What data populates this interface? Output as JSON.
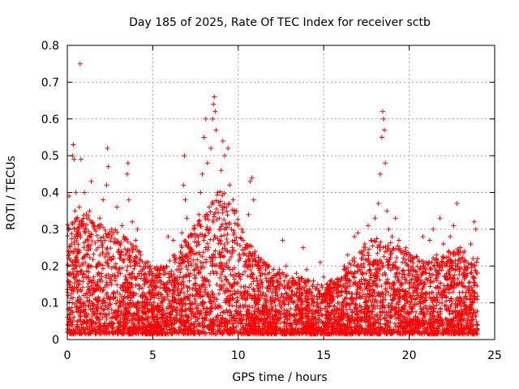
{
  "chart_data": {
    "type": "scatter",
    "title": "Day 185 of 2025, Rate Of TEC Index for receiver sctb",
    "xlabel": "GPS time / hours",
    "ylabel": "ROTI / TECUs",
    "xlim": [
      0,
      25
    ],
    "ylim": [
      0,
      0.8
    ],
    "xticks": [
      0,
      5,
      10,
      15,
      20,
      25
    ],
    "yticks": [
      0,
      0.1,
      0.2,
      0.3,
      0.4,
      0.5,
      0.6,
      0.7,
      0.8
    ],
    "xtick_labels": [
      "0",
      "5",
      "10",
      "15",
      "20",
      "25"
    ],
    "ytick_labels": [
      "0",
      "0.1",
      "0.2",
      "0.3",
      "0.4",
      "0.5",
      "0.6",
      "0.7",
      "0.8"
    ],
    "grid": true,
    "marker": "plus",
    "color": "#ff0000",
    "series": [
      {
        "points": [
          [
            0.0,
            0.02
          ],
          [
            0.05,
            0.12
          ],
          [
            0.1,
            0.3
          ],
          [
            0.1,
            0.39
          ],
          [
            0.15,
            0.18
          ],
          [
            0.2,
            0.05
          ],
          [
            0.25,
            0.26
          ],
          [
            0.3,
            0.1
          ],
          [
            0.3,
            0.5
          ],
          [
            0.35,
            0.53
          ],
          [
            0.4,
            0.49
          ],
          [
            0.45,
            0.35
          ],
          [
            0.5,
            0.4
          ],
          [
            0.55,
            0.08
          ],
          [
            0.6,
            0.28
          ],
          [
            0.65,
            0.15
          ],
          [
            0.7,
            0.36
          ],
          [
            0.75,
            0.75
          ],
          [
            0.8,
            0.49
          ],
          [
            0.85,
            0.31
          ],
          [
            0.9,
            0.22
          ],
          [
            0.95,
            0.12
          ],
          [
            1.0,
            0.4
          ],
          [
            1.05,
            0.29
          ],
          [
            1.1,
            0.06
          ],
          [
            1.2,
            0.2
          ],
          [
            1.3,
            0.35
          ],
          [
            1.4,
            0.43
          ],
          [
            1.5,
            0.14
          ],
          [
            1.6,
            0.3
          ],
          [
            1.7,
            0.09
          ],
          [
            1.8,
            0.25
          ],
          [
            1.9,
            0.33
          ],
          [
            2.0,
            0.18
          ],
          [
            2.1,
            0.38
          ],
          [
            2.2,
            0.27
          ],
          [
            2.3,
            0.42
          ],
          [
            2.35,
            0.52
          ],
          [
            2.4,
            0.47
          ],
          [
            2.5,
            0.11
          ],
          [
            2.6,
            0.3
          ],
          [
            2.7,
            0.22
          ],
          [
            2.8,
            0.16
          ],
          [
            2.9,
            0.36
          ],
          [
            3.0,
            0.24
          ],
          [
            3.1,
            0.09
          ],
          [
            3.2,
            0.31
          ],
          [
            3.3,
            0.28
          ],
          [
            3.4,
            0.13
          ],
          [
            3.5,
            0.45
          ],
          [
            3.55,
            0.48
          ],
          [
            3.6,
            0.38
          ],
          [
            3.7,
            0.2
          ],
          [
            3.8,
            0.32
          ],
          [
            3.9,
            0.12
          ],
          [
            4.0,
            0.27
          ],
          [
            4.1,
            0.3
          ],
          [
            4.2,
            0.06
          ],
          [
            4.3,
            0.23
          ],
          [
            4.4,
            0.19
          ],
          [
            4.5,
            0.15
          ],
          [
            4.6,
            0.21
          ],
          [
            4.7,
            0.1
          ],
          [
            4.8,
            0.13
          ],
          [
            4.9,
            0.08
          ],
          [
            5.0,
            0.18
          ],
          [
            5.1,
            0.05
          ],
          [
            5.2,
            0.12
          ],
          [
            5.3,
            0.09
          ],
          [
            5.4,
            0.16
          ],
          [
            5.5,
            0.07
          ],
          [
            5.6,
            0.14
          ],
          [
            5.7,
            0.11
          ],
          [
            5.8,
            0.2
          ],
          [
            5.9,
            0.28
          ],
          [
            6.0,
            0.09
          ],
          [
            6.1,
            0.15
          ],
          [
            6.2,
            0.27
          ],
          [
            6.3,
            0.06
          ],
          [
            6.4,
            0.19
          ],
          [
            6.5,
            0.12
          ],
          [
            6.6,
            0.22
          ],
          [
            6.7,
            0.29
          ],
          [
            6.8,
            0.42
          ],
          [
            6.85,
            0.5
          ],
          [
            6.9,
            0.38
          ],
          [
            7.0,
            0.33
          ],
          [
            7.1,
            0.26
          ],
          [
            7.2,
            0.18
          ],
          [
            7.3,
            0.24
          ],
          [
            7.4,
            0.3
          ],
          [
            7.5,
            0.14
          ],
          [
            7.6,
            0.2
          ],
          [
            7.7,
            0.34
          ],
          [
            7.8,
            0.4
          ],
          [
            7.9,
            0.45
          ],
          [
            8.0,
            0.55
          ],
          [
            8.1,
            0.6
          ],
          [
            8.2,
            0.48
          ],
          [
            8.3,
            0.36
          ],
          [
            8.4,
            0.52
          ],
          [
            8.5,
            0.6
          ],
          [
            8.55,
            0.64
          ],
          [
            8.6,
            0.66
          ],
          [
            8.65,
            0.62
          ],
          [
            8.7,
            0.57
          ],
          [
            8.8,
            0.4
          ],
          [
            8.9,
            0.33
          ],
          [
            9.0,
            0.46
          ],
          [
            9.1,
            0.54
          ],
          [
            9.2,
            0.5
          ],
          [
            9.3,
            0.36
          ],
          [
            9.4,
            0.52
          ],
          [
            9.5,
            0.42
          ],
          [
            9.6,
            0.3
          ],
          [
            9.7,
            0.38
          ],
          [
            9.8,
            0.27
          ],
          [
            9.9,
            0.35
          ],
          [
            10.0,
            0.31
          ],
          [
            10.1,
            0.22
          ],
          [
            10.2,
            0.3
          ],
          [
            10.3,
            0.12
          ],
          [
            10.4,
            0.25
          ],
          [
            10.5,
            0.2
          ],
          [
            10.6,
            0.34
          ],
          [
            10.7,
            0.43
          ],
          [
            10.8,
            0.44
          ],
          [
            10.9,
            0.38
          ],
          [
            11.0,
            0.24
          ],
          [
            11.1,
            0.16
          ],
          [
            11.2,
            0.21
          ],
          [
            11.3,
            0.13
          ],
          [
            11.4,
            0.18
          ],
          [
            11.5,
            0.09
          ],
          [
            11.6,
            0.19
          ],
          [
            11.7,
            0.14
          ],
          [
            11.8,
            0.2
          ],
          [
            11.9,
            0.11
          ],
          [
            12.0,
            0.16
          ],
          [
            12.2,
            0.12
          ],
          [
            12.4,
            0.19
          ],
          [
            12.6,
            0.27
          ],
          [
            12.8,
            0.2
          ],
          [
            13.0,
            0.14
          ],
          [
            13.2,
            0.1
          ],
          [
            13.4,
            0.18
          ],
          [
            13.6,
            0.12
          ],
          [
            13.8,
            0.25
          ],
          [
            14.0,
            0.19
          ],
          [
            14.2,
            0.13
          ],
          [
            14.4,
            0.16
          ],
          [
            14.6,
            0.08
          ],
          [
            14.8,
            0.21
          ],
          [
            15.0,
            0.17
          ],
          [
            15.2,
            0.1
          ],
          [
            15.4,
            0.14
          ],
          [
            15.6,
            0.09
          ],
          [
            15.8,
            0.15
          ],
          [
            16.0,
            0.12
          ],
          [
            16.2,
            0.2
          ],
          [
            16.4,
            0.23
          ],
          [
            16.6,
            0.18
          ],
          [
            16.8,
            0.28
          ],
          [
            17.0,
            0.29
          ],
          [
            17.2,
            0.22
          ],
          [
            17.4,
            0.26
          ],
          [
            17.6,
            0.31
          ],
          [
            17.8,
            0.27
          ],
          [
            18.0,
            0.33
          ],
          [
            18.2,
            0.37
          ],
          [
            18.3,
            0.45
          ],
          [
            18.4,
            0.55
          ],
          [
            18.45,
            0.62
          ],
          [
            18.5,
            0.6
          ],
          [
            18.55,
            0.57
          ],
          [
            18.6,
            0.48
          ],
          [
            18.7,
            0.35
          ],
          [
            18.8,
            0.3
          ],
          [
            18.9,
            0.24
          ],
          [
            19.0,
            0.28
          ],
          [
            19.2,
            0.33
          ],
          [
            19.4,
            0.27
          ],
          [
            19.6,
            0.21
          ],
          [
            19.8,
            0.25
          ],
          [
            20.0,
            0.18
          ],
          [
            20.2,
            0.22
          ],
          [
            20.4,
            0.14
          ],
          [
            20.6,
            0.19
          ],
          [
            20.8,
            0.28
          ],
          [
            21.0,
            0.21
          ],
          [
            21.2,
            0.27
          ],
          [
            21.4,
            0.3
          ],
          [
            21.6,
            0.23
          ],
          [
            21.8,
            0.33
          ],
          [
            22.0,
            0.26
          ],
          [
            22.2,
            0.2
          ],
          [
            22.4,
            0.28
          ],
          [
            22.6,
            0.31
          ],
          [
            22.8,
            0.37
          ],
          [
            23.0,
            0.24
          ],
          [
            23.2,
            0.21
          ],
          [
            23.4,
            0.18
          ],
          [
            23.6,
            0.26
          ],
          [
            23.8,
            0.32
          ],
          [
            23.9,
            0.3
          ],
          [
            24.0,
            0.22
          ]
        ]
      }
    ],
    "noise_envelope": {
      "x": [
        0,
        1,
        2,
        3,
        4,
        5,
        6,
        7,
        8,
        9,
        10,
        11,
        12,
        13,
        14,
        15,
        16,
        17,
        18,
        19,
        20,
        21,
        22,
        23,
        24
      ],
      "y_max": [
        0.3,
        0.33,
        0.3,
        0.28,
        0.24,
        0.18,
        0.2,
        0.27,
        0.33,
        0.4,
        0.32,
        0.22,
        0.18,
        0.16,
        0.15,
        0.13,
        0.17,
        0.22,
        0.27,
        0.25,
        0.22,
        0.2,
        0.22,
        0.24,
        0.2
      ]
    }
  }
}
